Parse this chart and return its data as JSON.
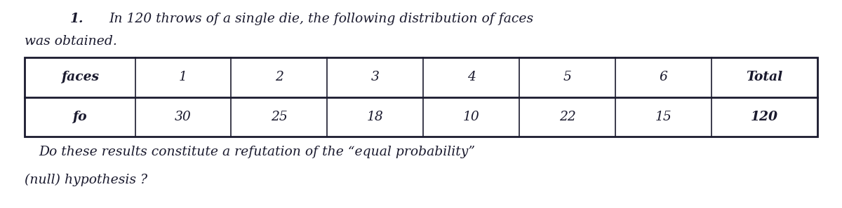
{
  "title_number": "1.",
  "title_text": "In 120 throws of a single die, the following distribution of faces",
  "title_text2": "was obtained.",
  "row1_header": "faces",
  "row1_values": [
    "1",
    "2",
    "3",
    "4",
    "5",
    "6",
    "Total"
  ],
  "row2_header": "fo",
  "row2_values": [
    "30",
    "25",
    "18",
    "10",
    "22",
    "15",
    "120"
  ],
  "footer_line1": "Do these results constitute a refutation of the “equal probability”",
  "footer_line2": "(null) hypothesis ?",
  "bg_color": "#ffffff",
  "text_color": "#1a1a2e",
  "table_line_color": "#1a1a2e",
  "font_size_title": 13.5,
  "font_size_table": 13.5,
  "font_size_footer": 13.5,
  "fig_width": 12.0,
  "fig_height": 2.97,
  "dpi": 100
}
